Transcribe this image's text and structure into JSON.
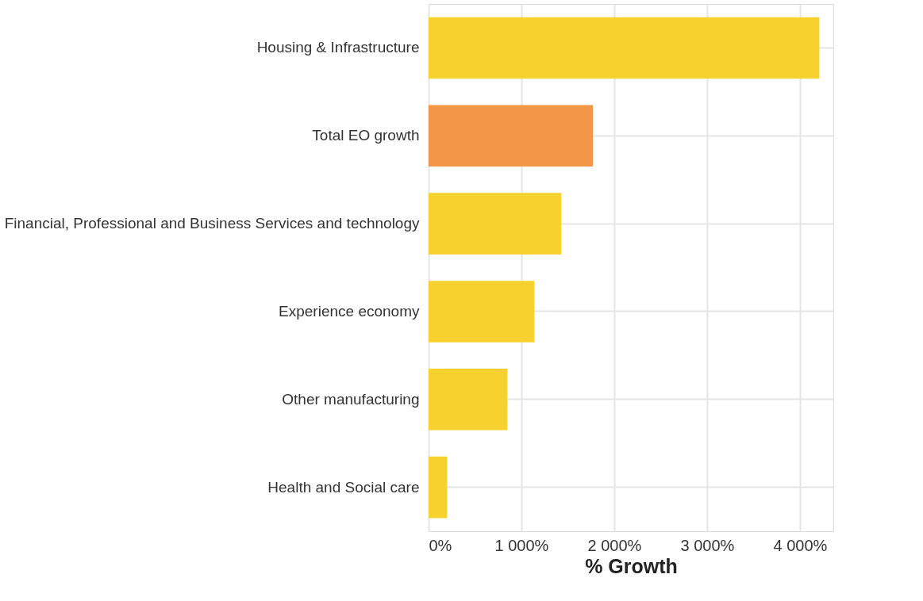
{
  "chart_data": {
    "type": "bar",
    "orientation": "horizontal",
    "xlabel": "% Growth",
    "categories": [
      "Housing & Infrastructure",
      "Total EO growth",
      "Financial, Professional and Business Services and technology",
      "Experience economy",
      "Other manufacturing",
      "Health and Social care"
    ],
    "values": [
      4210,
      1770,
      1430,
      1140,
      850,
      200
    ],
    "colors": [
      "#f7d22e",
      "#f49647",
      "#f7d22e",
      "#f7d22e",
      "#f7d22e",
      "#f7d22e"
    ],
    "xlim": [
      0,
      4360
    ],
    "xticks": [
      {
        "value": 0,
        "label": "0%"
      },
      {
        "value": 1000,
        "label": "1 000%"
      },
      {
        "value": 2000,
        "label": "2 000%"
      },
      {
        "value": 3000,
        "label": "3 000%"
      },
      {
        "value": 4000,
        "label": "4 000%"
      }
    ],
    "grid": true
  }
}
